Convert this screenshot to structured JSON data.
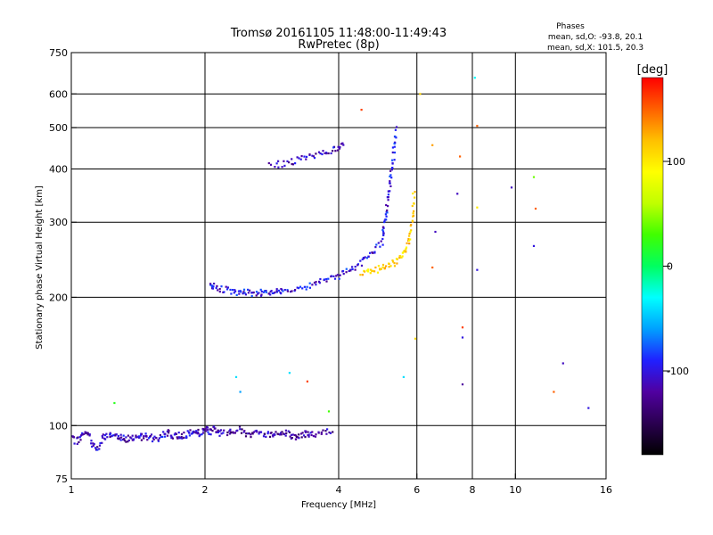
{
  "chart_data": {
    "type": "scatter",
    "title": "Tromsø 20161105 11:48:00-11:49:43",
    "subtitle": "RwPretec (8p)",
    "xlabel": "Frequency [MHz]",
    "ylabel": "Stationary phase Virtual Height [km]",
    "x_scale": "log",
    "y_scale": "log",
    "xlim": [
      1,
      16
    ],
    "ylim": [
      75,
      750
    ],
    "x_ticks": [
      1,
      2,
      4,
      6,
      8,
      10,
      16
    ],
    "x_tick_labels": [
      "1",
      "2",
      "4",
      "6",
      "8",
      "10",
      "16"
    ],
    "y_ticks": [
      75,
      100,
      200,
      300,
      400,
      500,
      600,
      750
    ],
    "y_tick_labels": [
      "75",
      "100",
      "200",
      "300",
      "400",
      "500",
      "600",
      "750"
    ],
    "grid": true,
    "legend": {
      "title": "Phases",
      "lines": [
        "mean, sd,O: -93.8, 20.1",
        "mean, sd,X: 101.5, 20.3"
      ],
      "placement": "top-right"
    },
    "colorbar": {
      "label": "[deg]",
      "range": [
        -180,
        180
      ],
      "ticks": [
        100,
        0,
        -100
      ],
      "tick_labels": [
        "100",
        "0",
        "-100"
      ],
      "colors": [
        "#000000",
        "#2a0050",
        "#5000a0",
        "#2020ff",
        "#00a0ff",
        "#00ffff",
        "#00ff60",
        "#40ff00",
        "#c0ff00",
        "#ffff00",
        "#ffc000",
        "#ff6000",
        "#ff0000"
      ]
    },
    "series": [
      {
        "traces": [
          {
            "f": [
              1.0,
              1.03,
              1.06,
              1.09,
              1.12,
              1.15,
              1.18,
              1.22,
              1.26,
              1.3,
              1.34,
              1.38,
              1.42,
              1.46,
              1.5,
              1.55,
              1.6,
              1.65,
              1.7,
              1.75,
              1.8,
              1.85,
              1.9,
              1.95,
              2.0,
              2.05,
              2.1,
              2.15,
              2.2
            ],
            "h": [
              93,
              92,
              95,
              96,
              90,
              88,
              94,
              95,
              95,
              94,
              93,
              94,
              93,
              95,
              94,
              93,
              95,
              96,
              94,
              95,
              95,
              96,
              97,
              96,
              98,
              97,
              99,
              96,
              97
            ],
            "phase": -110
          },
          {
            "f": [
              2.25,
              2.3,
              2.4,
              2.5,
              2.6,
              2.7,
              2.8,
              2.9,
              3.0,
              3.1,
              3.2,
              3.3,
              3.4,
              3.5,
              3.7,
              3.9
            ],
            "h": [
              96,
              97,
              98,
              95,
              97,
              96,
              95,
              96,
              97,
              95,
              94,
              95,
              96,
              95,
              96,
              97
            ],
            "phase": -120
          },
          {
            "f": [
              2.05,
              2.1,
              2.2,
              2.3,
              2.4,
              2.5,
              2.6,
              2.7,
              2.8,
              2.9,
              3.0,
              3.2,
              3.4,
              3.6,
              3.8,
              4.0,
              4.2,
              4.4,
              4.6,
              4.8,
              5.0
            ],
            "h": [
              214,
              212,
              209,
              206,
              205,
              205,
              205,
              205,
              206,
              207,
              208,
              210,
              213,
              216,
              220,
              225,
              231,
              238,
              246,
              257,
              270
            ],
            "phase": -100
          },
          {
            "f": [
              5.0,
              5.05,
              5.1,
              5.15,
              5.2,
              5.25,
              5.3,
              5.35,
              5.4
            ],
            "h": [
              270,
              290,
              310,
              335,
              360,
              390,
              420,
              460,
              500
            ],
            "phase": -100
          },
          {
            "f": [
              2.8,
              3.0,
              3.2,
              3.4,
              3.6,
              3.8,
              4.0,
              4.1
            ],
            "h": [
              408,
              412,
              418,
              425,
              432,
              440,
              450,
              458
            ],
            "phase": -110
          },
          {
            "f": [
              4.5,
              4.7,
              4.9,
              5.1,
              5.3,
              5.5,
              5.65,
              5.75,
              5.82,
              5.88,
              5.92
            ],
            "h": [
              228,
              230,
              233,
              236,
              240,
              248,
              258,
              272,
              290,
              320,
              360
            ],
            "phase": 110
          }
        ],
        "points": [
          {
            "f": 1.25,
            "h": 113,
            "phase": 20
          },
          {
            "f": 2.35,
            "h": 130,
            "phase": -40
          },
          {
            "f": 2.4,
            "h": 120,
            "phase": -60
          },
          {
            "f": 3.1,
            "h": 133,
            "phase": -40
          },
          {
            "f": 3.4,
            "h": 127,
            "phase": 160
          },
          {
            "f": 3.8,
            "h": 108,
            "phase": 30
          },
          {
            "f": 4.5,
            "h": 551,
            "phase": 160
          },
          {
            "f": 5.6,
            "h": 130,
            "phase": -40
          },
          {
            "f": 5.95,
            "h": 160,
            "phase": 110
          },
          {
            "f": 6.1,
            "h": 600,
            "phase": 110
          },
          {
            "f": 6.5,
            "h": 455,
            "phase": 130
          },
          {
            "f": 6.6,
            "h": 285,
            "phase": -110
          },
          {
            "f": 6.5,
            "h": 235,
            "phase": 150
          },
          {
            "f": 7.5,
            "h": 428,
            "phase": 150
          },
          {
            "f": 7.4,
            "h": 350,
            "phase": -110
          },
          {
            "f": 7.6,
            "h": 170,
            "phase": 160
          },
          {
            "f": 7.6,
            "h": 161,
            "phase": -100
          },
          {
            "f": 7.6,
            "h": 125,
            "phase": -120
          },
          {
            "f": 8.1,
            "h": 655,
            "phase": -30
          },
          {
            "f": 8.2,
            "h": 505,
            "phase": 150
          },
          {
            "f": 8.2,
            "h": 325,
            "phase": 100
          },
          {
            "f": 8.2,
            "h": 232,
            "phase": -100
          },
          {
            "f": 9.8,
            "h": 362,
            "phase": -110
          },
          {
            "f": 11.0,
            "h": 383,
            "phase": 40
          },
          {
            "f": 11.1,
            "h": 323,
            "phase": 150
          },
          {
            "f": 11.0,
            "h": 264,
            "phase": -100
          },
          {
            "f": 12.2,
            "h": 120,
            "phase": 150
          },
          {
            "f": 12.8,
            "h": 140,
            "phase": -110
          },
          {
            "f": 14.6,
            "h": 110,
            "phase": -100
          }
        ]
      }
    ]
  }
}
